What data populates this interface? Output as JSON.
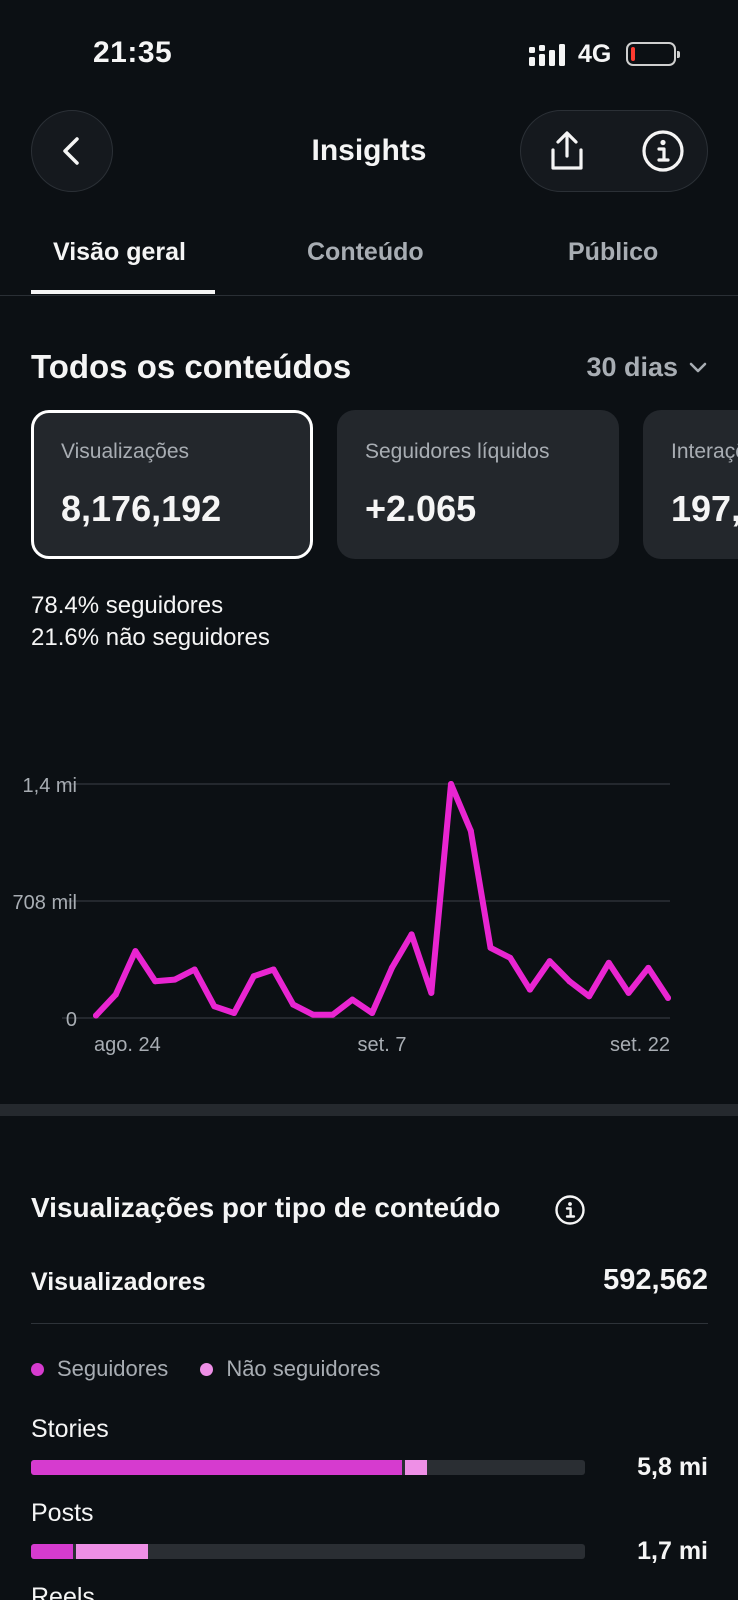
{
  "status": {
    "time": "21:35",
    "network": "4G",
    "battery_level": 0.1
  },
  "header": {
    "title": "Insights",
    "back_icon": "chevron-left-icon",
    "share_icon": "share-icon",
    "info_icon": "info-icon"
  },
  "tabs": [
    {
      "label": "Visão geral",
      "active": true
    },
    {
      "label": "Conteúdo",
      "active": false
    },
    {
      "label": "Público",
      "active": false
    }
  ],
  "overview": {
    "title": "Todos os conteúdos",
    "range": "30 dias",
    "cards": [
      {
        "label": "Visualizações",
        "value": "8,176,192",
        "selected": true
      },
      {
        "label": "Seguidores líquidos",
        "value": "+2.065",
        "selected": false
      },
      {
        "label": "Interações",
        "value": "197,",
        "selected": false
      }
    ],
    "followers_pct": "78.4%",
    "followers_text": "seguidores",
    "nonfollowers_pct": "21.6%",
    "nonfollowers_text": "não seguidores"
  },
  "chart_data": {
    "type": "line",
    "y_ticks": [
      "1,4 mi",
      "708 mil",
      "0"
    ],
    "x_ticks": [
      "ago. 24",
      "set. 7",
      "set. 22"
    ],
    "ylim": [
      0,
      1400000
    ],
    "color": "#e925d1",
    "grid": true,
    "series": [
      {
        "values": [
          15000,
          140000,
          400000,
          220000,
          230000,
          290000,
          70000,
          30000,
          250000,
          290000,
          80000,
          20000,
          20000,
          110000,
          30000,
          300000,
          500000,
          150000,
          1400000,
          1120000,
          420000,
          360000,
          170000,
          340000,
          220000,
          130000,
          330000,
          150000,
          300000,
          120000
        ]
      }
    ]
  },
  "breakdown": {
    "title": "Visualizações por tipo de conteúdo",
    "viewers_label": "Visualizadores",
    "viewers_value": "592,562",
    "legend": [
      {
        "label": "Seguidores",
        "color": "#d63bcf"
      },
      {
        "label": "Não seguidores",
        "color": "#ee8fe6"
      }
    ],
    "rows": [
      {
        "label": "Stories",
        "value": "5,8 mi",
        "followers_frac": 0.67,
        "nonfollowers_frac": 0.04
      },
      {
        "label": "Posts",
        "value": "1,7 mi",
        "followers_frac": 0.075,
        "nonfollowers_frac": 0.13
      },
      {
        "label": "Reels",
        "value": "",
        "followers_frac": 0,
        "nonfollowers_frac": 0
      }
    ]
  }
}
